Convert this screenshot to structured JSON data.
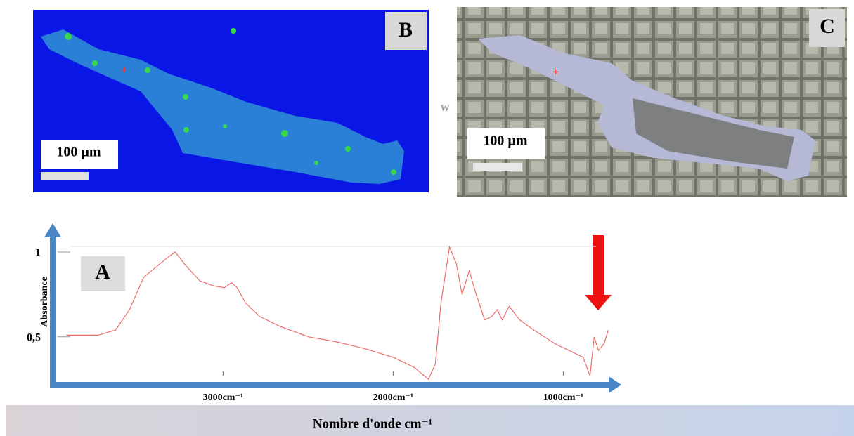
{
  "chart_data": {
    "type": "line",
    "panel_b_label": "B",
    "panel_c_label": "C",
    "panel_a_label": "A",
    "scale_bar_b": "100 µm",
    "scale_bar_c": "100 µm",
    "stray_mark": "W",
    "y_label": "Absorbance",
    "x_label": "Nombre d'onde cm⁻¹",
    "xlim": [
      3960,
      700
    ],
    "ylim": [
      0.23,
      1.12
    ],
    "xticks": [
      {
        "value": 3000,
        "label": "3000cm⁻¹"
      },
      {
        "value": 2000,
        "label": "2000cm⁻¹"
      },
      {
        "value": 1000,
        "label": "1000cm⁻¹"
      }
    ],
    "yticks": [
      1,
      {
        "value": 0.5,
        "label": "0,5"
      }
    ],
    "color": "#e8706c",
    "x": [
      3921,
      3735,
      3632,
      3550,
      3467,
      3384,
      3322,
      3281,
      3219,
      3136,
      3054,
      2992,
      2950,
      2917,
      2868,
      2785,
      2661,
      2496,
      2331,
      2165,
      2000,
      1876,
      1793,
      1752,
      1719,
      1669,
      1628,
      1595,
      1553,
      1512,
      1462,
      1421,
      1388,
      1359,
      1318,
      1256,
      1173,
      1050,
      967,
      884,
      843,
      818,
      793,
      760,
      735
    ],
    "values": [
      0.51,
      0.51,
      0.54,
      0.66,
      0.85,
      0.92,
      0.97,
      1.0,
      0.92,
      0.83,
      0.8,
      0.79,
      0.82,
      0.79,
      0.7,
      0.62,
      0.56,
      0.5,
      0.47,
      0.43,
      0.38,
      0.32,
      0.25,
      0.34,
      0.7,
      1.03,
      0.93,
      0.75,
      0.89,
      0.75,
      0.6,
      0.62,
      0.66,
      0.6,
      0.68,
      0.6,
      0.54,
      0.46,
      0.42,
      0.38,
      0.27,
      0.5,
      0.42,
      0.46,
      0.54
    ]
  }
}
